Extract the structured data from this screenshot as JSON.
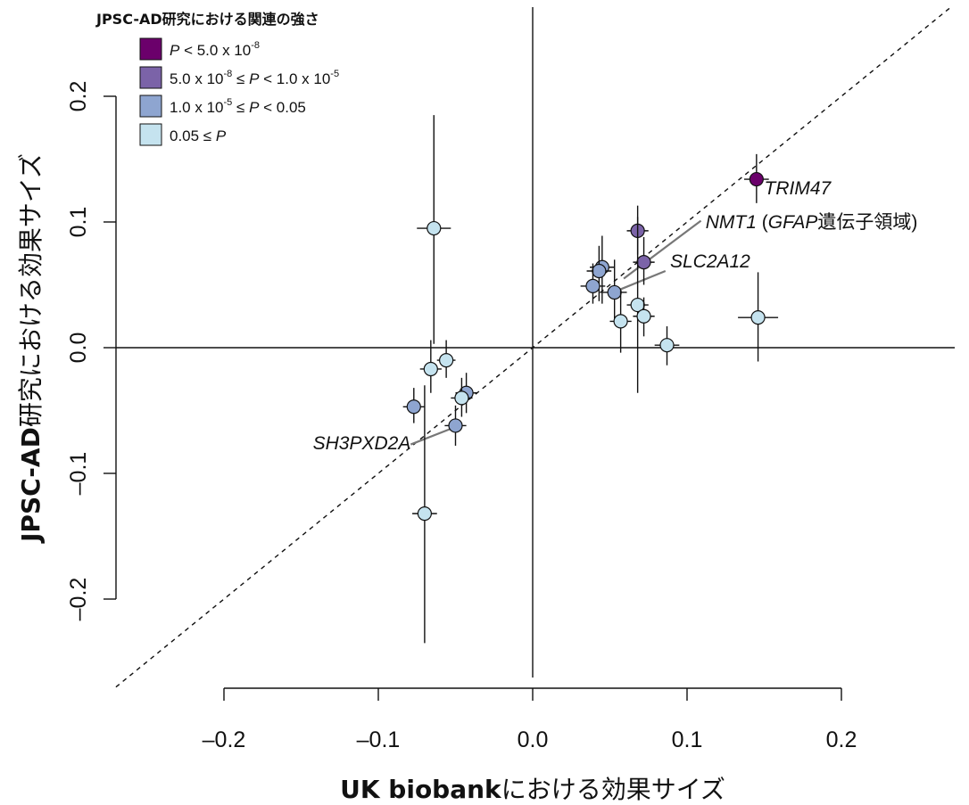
{
  "chart_data": {
    "type": "scatter",
    "x_title": {
      "bold": "UK biobank",
      "rest": "における効果サイズ"
    },
    "y_title": {
      "bold": "JPSC-AD",
      "rest": "研究における効果サイズ"
    },
    "xlim": [
      -0.2,
      0.2
    ],
    "ylim": [
      -0.2,
      0.2
    ],
    "x_ticks": [
      -0.2,
      -0.1,
      0.0,
      0.1,
      0.2
    ],
    "x_tick_labels": [
      "–0.2",
      "–0.1",
      "0.0",
      "0.1",
      "0.2"
    ],
    "y_ticks": [
      -0.2,
      -0.1,
      0.0,
      0.1,
      0.2
    ],
    "y_tick_labels": [
      "–0.2",
      "–0.1",
      "0.0",
      "0.1",
      "0.2"
    ],
    "reference_line": "y = x",
    "legend": {
      "title": "JPSC-AD研究における関連の強さ",
      "placement": "top-left",
      "entries": [
        {
          "key": "c1",
          "color": "#6b006b",
          "parts": [
            [
              "i",
              "P"
            ],
            [
              "n",
              " < 5.0 x 10"
            ],
            [
              "sup",
              "-8"
            ]
          ]
        },
        {
          "key": "c2",
          "color": "#7b63a8",
          "parts": [
            [
              "n",
              "5.0 x 10"
            ],
            [
              "sup",
              "-8"
            ],
            [
              "n",
              " ≤ "
            ],
            [
              "i",
              "P"
            ],
            [
              "n",
              " < 1.0 x 10"
            ],
            [
              "sup",
              "-5"
            ]
          ]
        },
        {
          "key": "c3",
          "color": "#8ea5d0",
          "parts": [
            [
              "n",
              "1.0 x 10"
            ],
            [
              "sup",
              "-5"
            ],
            [
              "n",
              " ≤ "
            ],
            [
              "i",
              "P"
            ],
            [
              "n",
              " < 0.05"
            ]
          ]
        },
        {
          "key": "c4",
          "color": "#c5e3ef",
          "parts": [
            [
              "n",
              "0.05 ≤ "
            ],
            [
              "i",
              "P"
            ]
          ]
        }
      ]
    },
    "points": [
      {
        "x": 0.145,
        "y": 0.134,
        "xerr": 0.008,
        "ylo": 0.115,
        "yhi": 0.154,
        "cat": "c1"
      },
      {
        "x": 0.068,
        "y": 0.093,
        "xerr": 0.007,
        "ylo": 0.074,
        "yhi": 0.113,
        "cat": "c2"
      },
      {
        "x": 0.072,
        "y": 0.068,
        "xerr": 0.007,
        "ylo": 0.05,
        "yhi": 0.088,
        "cat": "c2"
      },
      {
        "x": 0.045,
        "y": 0.064,
        "xerr": 0.008,
        "ylo": 0.035,
        "yhi": 0.089,
        "cat": "c3"
      },
      {
        "x": 0.043,
        "y": 0.061,
        "xerr": 0.008,
        "ylo": 0.037,
        "yhi": 0.081,
        "cat": "c3"
      },
      {
        "x": 0.039,
        "y": 0.049,
        "xerr": 0.008,
        "ylo": 0.035,
        "yhi": 0.067,
        "cat": "c3"
      },
      {
        "x": 0.053,
        "y": 0.044,
        "xerr": 0.008,
        "ylo": 0.022,
        "yhi": 0.07,
        "cat": "c3"
      },
      {
        "x": 0.068,
        "y": 0.034,
        "xerr": 0.007,
        "ylo": -0.036,
        "yhi": 0.104,
        "cat": "c4"
      },
      {
        "x": 0.057,
        "y": 0.021,
        "xerr": 0.007,
        "ylo": -0.004,
        "yhi": 0.046,
        "cat": "c4"
      },
      {
        "x": 0.072,
        "y": 0.025,
        "xerr": 0.007,
        "ylo": 0.009,
        "yhi": 0.04,
        "cat": "c4"
      },
      {
        "x": 0.146,
        "y": 0.024,
        "xerr": 0.013,
        "ylo": -0.011,
        "yhi": 0.06,
        "cat": "c4"
      },
      {
        "x": 0.087,
        "y": 0.002,
        "xerr": 0.008,
        "ylo": -0.014,
        "yhi": 0.017,
        "cat": "c4"
      },
      {
        "x": -0.064,
        "y": 0.095,
        "xerr": 0.011,
        "ylo": 0.003,
        "yhi": 0.185,
        "cat": "c4"
      },
      {
        "x": -0.056,
        "y": -0.01,
        "xerr": 0.006,
        "ylo": -0.024,
        "yhi": 0.006,
        "cat": "c4"
      },
      {
        "x": -0.066,
        "y": -0.017,
        "xerr": 0.007,
        "ylo": -0.036,
        "yhi": 0.006,
        "cat": "c4"
      },
      {
        "x": -0.043,
        "y": -0.036,
        "xerr": 0.007,
        "ylo": -0.052,
        "yhi": -0.02,
        "cat": "c3"
      },
      {
        "x": -0.046,
        "y": -0.04,
        "xerr": 0.007,
        "ylo": -0.055,
        "yhi": -0.024,
        "cat": "c4"
      },
      {
        "x": -0.077,
        "y": -0.047,
        "xerr": 0.007,
        "ylo": -0.06,
        "yhi": -0.032,
        "cat": "c3"
      },
      {
        "x": -0.05,
        "y": -0.062,
        "xerr": 0.007,
        "ylo": -0.078,
        "yhi": -0.046,
        "cat": "c3"
      },
      {
        "x": -0.07,
        "y": -0.132,
        "xerr": 0.008,
        "ylo": -0.235,
        "yhi": -0.03,
        "cat": "c4"
      }
    ],
    "annotations": [
      {
        "id": "trim47",
        "text": "TRIM47",
        "italic": true,
        "x": 0.15,
        "y": 0.122
      },
      {
        "id": "nmt1",
        "x": 0.112,
        "y": 0.095,
        "parts": [
          [
            "i",
            "NMT1"
          ],
          [
            "n",
            " ("
          ],
          [
            "i",
            "GFAP"
          ],
          [
            "n",
            "遺伝子領域)"
          ]
        ],
        "line": [
          [
            0.109,
            0.101
          ],
          [
            0.059,
            0.055
          ]
        ]
      },
      {
        "id": "slc2a12",
        "text": "SLC2A12",
        "italic": true,
        "x": 0.089,
        "y": 0.064,
        "line": [
          [
            0.086,
            0.061
          ],
          [
            0.054,
            0.045
          ]
        ]
      },
      {
        "id": "sh3pxd2a",
        "text": "SH3PXD2A",
        "italic": true,
        "x": -0.079,
        "y": -0.081,
        "anchor": "end",
        "line": [
          [
            -0.079,
            -0.077
          ],
          [
            -0.052,
            -0.064
          ]
        ]
      }
    ]
  }
}
